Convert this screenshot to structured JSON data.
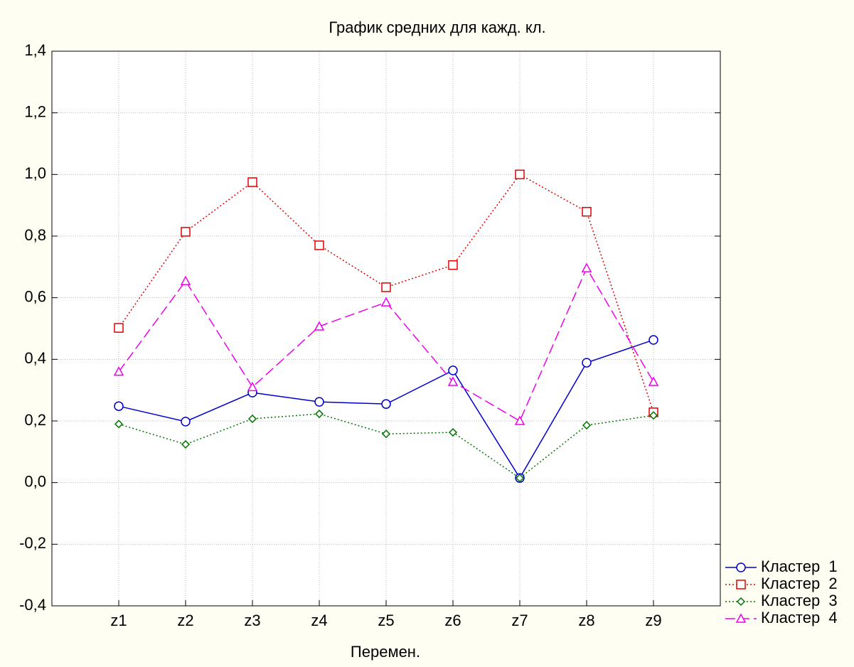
{
  "chart_data": {
    "type": "line",
    "title": "График средних для кажд. кл.",
    "x_label": "Перемен.",
    "categories": [
      "z1",
      "z2",
      "z3",
      "z4",
      "z5",
      "z6",
      "z7",
      "z8",
      "z9"
    ],
    "ylim": [
      -0.4,
      1.4
    ],
    "yticks": [
      {
        "value": -0.4,
        "label": "-0,4"
      },
      {
        "value": -0.2,
        "label": "-0,2"
      },
      {
        "value": 0,
        "label": "0,0"
      },
      {
        "value": 0.2,
        "label": "0,2"
      },
      {
        "value": 0.4,
        "label": "0,4"
      },
      {
        "value": 0.6,
        "label": "0,6"
      },
      {
        "value": 0.8,
        "label": "0,8"
      },
      {
        "value": 1.0,
        "label": "1,0"
      },
      {
        "value": 1.2,
        "label": "1,2"
      },
      {
        "value": 1.4,
        "label": "1,4"
      }
    ],
    "grid": true,
    "legend": "right",
    "series": [
      {
        "name": "Кластер  1",
        "color": "#0000cc",
        "dash": "solid",
        "marker": "circle",
        "values": [
          0.248,
          0.198,
          0.292,
          0.262,
          0.255,
          0.364,
          0.015,
          0.389,
          0.463
        ]
      },
      {
        "name": "Кластер  2",
        "color": "#e00000",
        "dash": "dotted",
        "marker": "square",
        "values": [
          0.502,
          0.814,
          0.975,
          0.77,
          0.634,
          0.706,
          1.0,
          0.879,
          0.228
        ]
      },
      {
        "name": "Кластер  3",
        "color": "#007700",
        "dash": "dotted",
        "marker": "diamond",
        "values": [
          0.19,
          0.124,
          0.207,
          0.223,
          0.158,
          0.163,
          0.015,
          0.186,
          0.218
        ]
      },
      {
        "name": "Кластер  4",
        "color": "#ee00ee",
        "dash": "dashed",
        "marker": "triangle",
        "values": [
          0.36,
          0.654,
          0.31,
          0.507,
          0.585,
          0.327,
          0.2,
          0.696,
          0.327
        ]
      }
    ]
  }
}
